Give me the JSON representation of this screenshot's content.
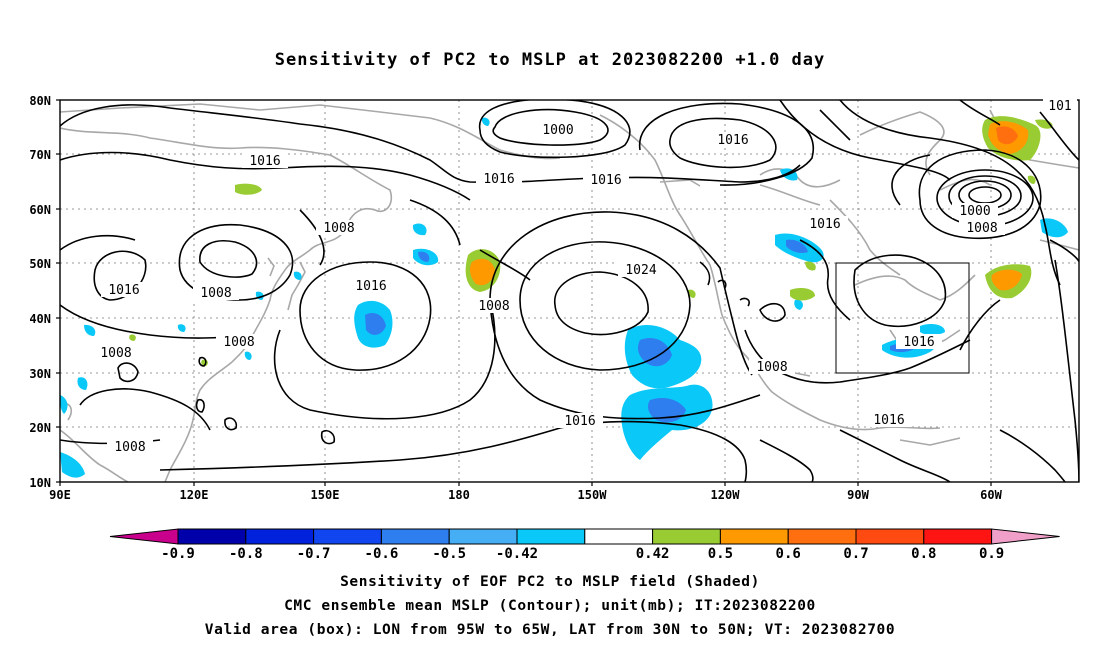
{
  "title": "Sensitivity of PC2 to MSLP at 2023082200 +1.0 day",
  "axes": {
    "lat_ticks": [
      "80N",
      "70N",
      "60N",
      "50N",
      "40N",
      "30N",
      "20N",
      "10N"
    ],
    "lon_ticks": [
      "90E",
      "120E",
      "150E",
      "180",
      "150W",
      "120W",
      "90W",
      "60W"
    ],
    "grid": "dotted"
  },
  "colorbar": {
    "labels": [
      "-0.9",
      "-0.8",
      "-0.7",
      "-0.6",
      "-0.5",
      "-0.42",
      "0.42",
      "0.5",
      "0.6",
      "0.7",
      "0.8",
      "0.9"
    ],
    "colors": [
      "#c8008c",
      "#0000aa",
      "#0022dd",
      "#1145f0",
      "#2f7ef0",
      "#45aef5",
      "#0ac8f8",
      "#ffffff",
      "#99cc33",
      "#ff9900",
      "#ff6f0f",
      "#ff4a12",
      "#ff1414",
      "#f0a0c8"
    ]
  },
  "contour_labels": [
    "1000",
    "1016",
    "1016",
    "1016",
    "1008",
    "1016",
    "1008",
    "1016",
    "1008",
    "1008",
    "1024",
    "1016",
    "1016",
    "1016",
    "1000",
    "1008",
    "1008",
    "1016",
    "1008",
    "1008",
    "1016",
    "101"
  ],
  "captions": [
    "Sensitivity of EOF PC2 to MSLP field (Shaded)",
    "CMC ensemble mean MSLP (Contour); unit(mb); IT:2023082200",
    "Valid area (box): LON from 95W to 65W, LAT from 30N to 50N; VT: 2023082700"
  ]
}
